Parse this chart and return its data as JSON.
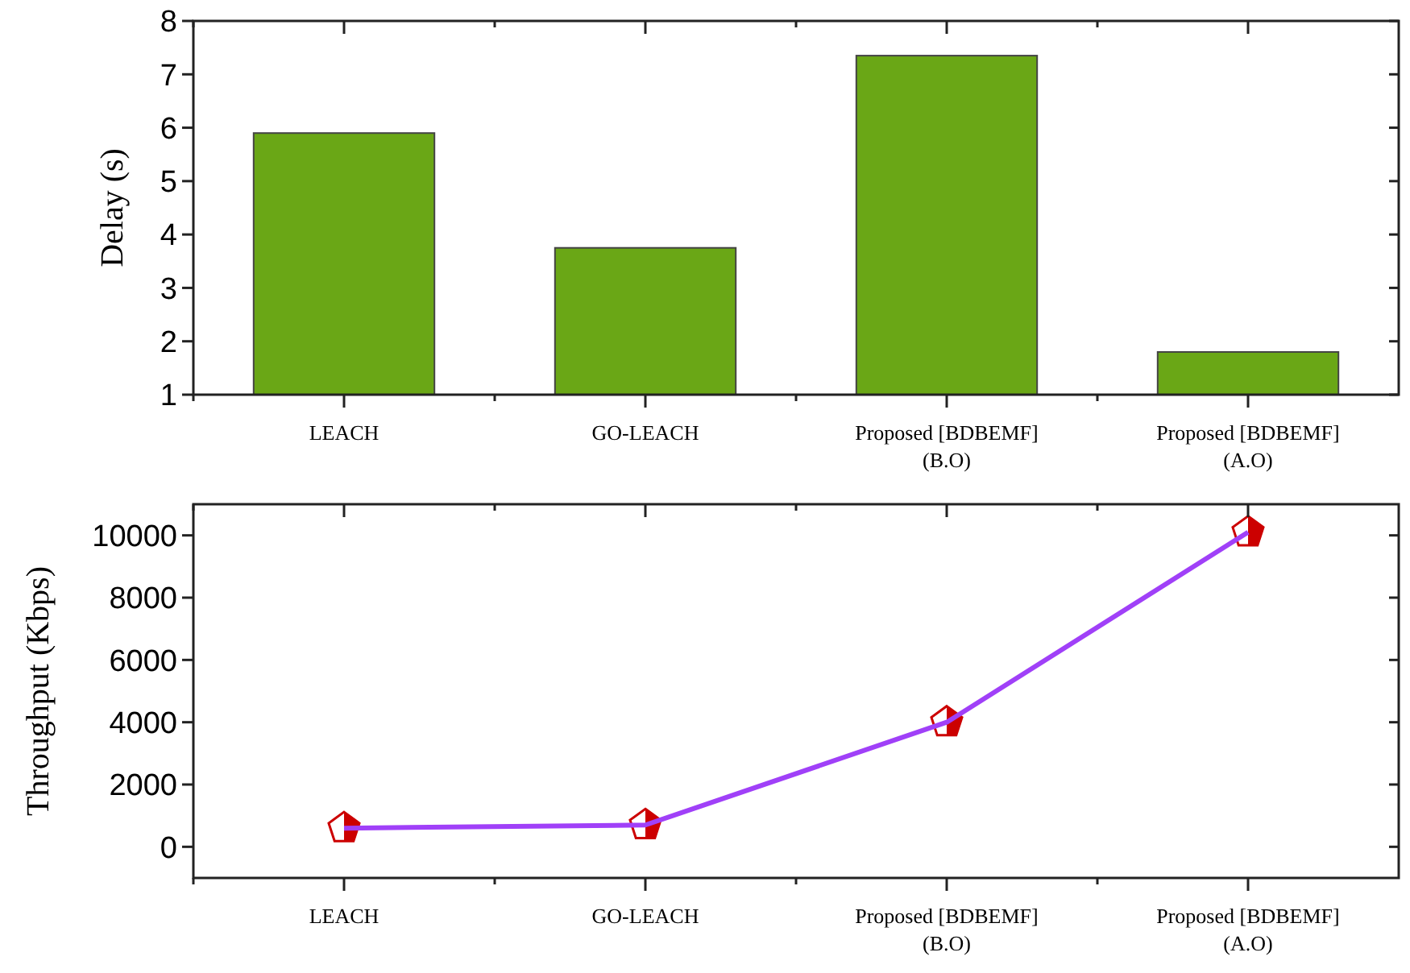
{
  "chart_data": [
    {
      "type": "bar",
      "ylabel": "Delay (s)",
      "categories": [
        "LEACH",
        "GO-LEACH",
        "Proposed [BDBEMF]\n(B.O)",
        "Proposed [BDBEMF]\n(A.O)"
      ],
      "values": [
        5.9,
        3.75,
        7.35,
        1.8
      ],
      "color": "#6aa716",
      "ylim": [
        1,
        8
      ],
      "yticks": [
        1,
        2,
        3,
        4,
        5,
        6,
        7,
        8
      ],
      "grid": false
    },
    {
      "type": "line",
      "ylabel": "Throughput (Kbps)",
      "categories": [
        "LEACH",
        "GO-LEACH",
        "Proposed [BDBEMF]\n(B.O)",
        "Proposed [BDBEMF]\n(A.O)"
      ],
      "values": [
        600,
        700,
        4000,
        10100
      ],
      "color": "#a040f8",
      "marker": "star",
      "ylim": [
        -1000,
        11000
      ],
      "yticks": [
        0,
        2000,
        4000,
        6000,
        8000,
        10000
      ],
      "grid": false
    }
  ]
}
